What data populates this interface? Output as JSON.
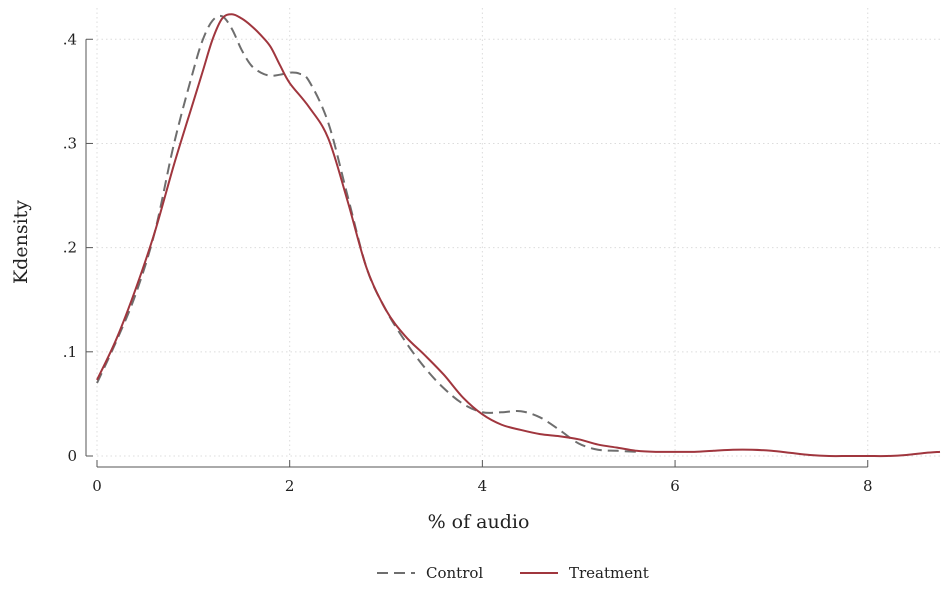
{
  "chart_data": {
    "type": "line",
    "xlabel": "% of audio",
    "ylabel": "Kdensity",
    "xlim": [
      0,
      8.75
    ],
    "ylim": [
      0,
      0.43
    ],
    "x_ticks": [
      0,
      2,
      4,
      6,
      8
    ],
    "x_tick_labels": [
      "0",
      "2",
      "4",
      "6",
      "8"
    ],
    "y_ticks": [
      0,
      0.1,
      0.2,
      0.3,
      0.4
    ],
    "y_tick_labels": [
      "0",
      ".1",
      ".2",
      ".3",
      ".4"
    ],
    "grid": true,
    "legend_position": "bottom",
    "series": [
      {
        "name": "Control",
        "color": "#6e6e6e",
        "dash": "dashed",
        "x": [
          0,
          0.2,
          0.4,
          0.6,
          0.8,
          1.0,
          1.1,
          1.2,
          1.3,
          1.4,
          1.5,
          1.6,
          1.7,
          1.8,
          1.9,
          2.0,
          2.1,
          2.2,
          2.4,
          2.6,
          2.8,
          3.0,
          3.2,
          3.4,
          3.6,
          3.8,
          4.0,
          4.2,
          4.4,
          4.6,
          4.8,
          5.0,
          5.2,
          5.4,
          5.6
        ],
        "y": [
          0.07,
          0.11,
          0.155,
          0.215,
          0.3,
          0.37,
          0.4,
          0.418,
          0.422,
          0.41,
          0.39,
          0.375,
          0.368,
          0.365,
          0.366,
          0.368,
          0.367,
          0.36,
          0.32,
          0.25,
          0.18,
          0.14,
          0.11,
          0.085,
          0.065,
          0.05,
          0.042,
          0.042,
          0.043,
          0.037,
          0.025,
          0.012,
          0.006,
          0.005,
          0.004
        ]
      },
      {
        "name": "Treatment",
        "color": "#a0363e",
        "dash": "solid",
        "x": [
          0,
          0.2,
          0.4,
          0.6,
          0.8,
          1.0,
          1.1,
          1.2,
          1.3,
          1.4,
          1.5,
          1.6,
          1.7,
          1.8,
          1.9,
          2.0,
          2.2,
          2.4,
          2.6,
          2.8,
          3.0,
          3.2,
          3.4,
          3.6,
          3.8,
          4.0,
          4.2,
          4.4,
          4.6,
          4.8,
          5.0,
          5.2,
          5.4,
          5.6,
          5.8,
          6.0,
          6.2,
          6.4,
          6.6,
          6.8,
          7.0,
          7.2,
          7.4,
          7.6,
          7.8,
          8.0,
          8.2,
          8.4,
          8.6,
          8.75
        ],
        "y": [
          0.073,
          0.112,
          0.16,
          0.215,
          0.28,
          0.34,
          0.37,
          0.4,
          0.42,
          0.424,
          0.42,
          0.413,
          0.404,
          0.393,
          0.375,
          0.358,
          0.335,
          0.305,
          0.245,
          0.18,
          0.14,
          0.115,
          0.097,
          0.078,
          0.056,
          0.04,
          0.03,
          0.025,
          0.021,
          0.019,
          0.016,
          0.011,
          0.008,
          0.005,
          0.004,
          0.004,
          0.004,
          0.005,
          0.006,
          0.006,
          0.005,
          0.003,
          0.001,
          0.0,
          0.0,
          0.0,
          0.0,
          0.001,
          0.003,
          0.004
        ]
      }
    ]
  }
}
